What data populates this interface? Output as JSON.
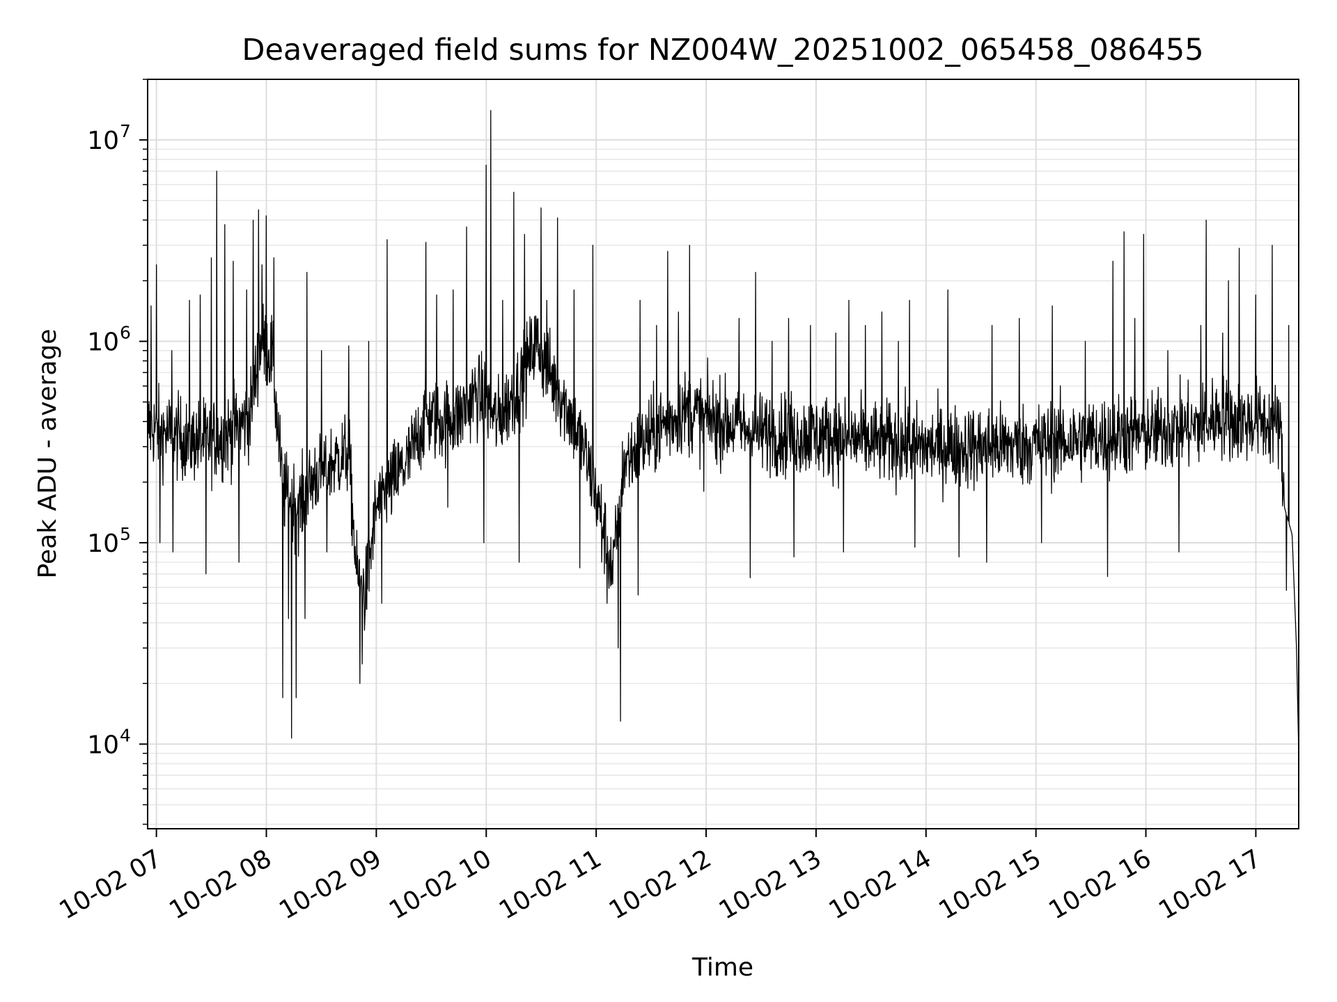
{
  "chart_data": {
    "type": "line",
    "title": "Deaveraged field sums for NZ004W_20251002_065458_086455",
    "xlabel": "Time",
    "ylabel": "Peak ADU - average",
    "yscale": "log",
    "x_unit": "hours",
    "xlim": [
      6.92,
      17.39
    ],
    "ylim": [
      3800,
      20000000
    ],
    "x_ticks": [
      {
        "value": 7,
        "label": "10-02 07"
      },
      {
        "value": 8,
        "label": "10-02 08"
      },
      {
        "value": 9,
        "label": "10-02 09"
      },
      {
        "value": 10,
        "label": "10-02 10"
      },
      {
        "value": 11,
        "label": "10-02 11"
      },
      {
        "value": 12,
        "label": "10-02 12"
      },
      {
        "value": 13,
        "label": "10-02 13"
      },
      {
        "value": 14,
        "label": "10-02 14"
      },
      {
        "value": 15,
        "label": "10-02 15"
      },
      {
        "value": 16,
        "label": "10-02 16"
      },
      {
        "value": 17,
        "label": "10-02 17"
      }
    ],
    "y_ticks": [
      {
        "value": 10000,
        "base": "10",
        "exp": "4"
      },
      {
        "value": 100000,
        "base": "10",
        "exp": "5"
      },
      {
        "value": 1000000,
        "base": "10",
        "exp": "6"
      },
      {
        "value": 10000000,
        "base": "10",
        "exp": "7"
      }
    ],
    "grid": true,
    "line_color": "#000000",
    "series": [
      {
        "name": "field sums",
        "baseline": [
          [
            6.92,
            380000
          ],
          [
            7.1,
            350000
          ],
          [
            7.3,
            320000
          ],
          [
            7.6,
            330000
          ],
          [
            7.85,
            420000
          ],
          [
            7.95,
            1000000
          ],
          [
            8.05,
            850000
          ],
          [
            8.15,
            180000
          ],
          [
            8.3,
            150000
          ],
          [
            8.45,
            220000
          ],
          [
            8.6,
            250000
          ],
          [
            8.75,
            280000
          ],
          [
            8.82,
            70000
          ],
          [
            8.9,
            55000
          ],
          [
            9.0,
            150000
          ],
          [
            9.15,
            200000
          ],
          [
            9.3,
            260000
          ],
          [
            9.45,
            420000
          ],
          [
            9.6,
            400000
          ],
          [
            9.75,
            420000
          ],
          [
            9.9,
            550000
          ],
          [
            10.0,
            500000
          ],
          [
            10.1,
            400000
          ],
          [
            10.3,
            600000
          ],
          [
            10.45,
            1000000
          ],
          [
            10.6,
            650000
          ],
          [
            10.75,
            450000
          ],
          [
            10.9,
            280000
          ],
          [
            11.05,
            130000
          ],
          [
            11.15,
            70000
          ],
          [
            11.25,
            250000
          ],
          [
            11.4,
            300000
          ],
          [
            11.6,
            380000
          ],
          [
            11.8,
            450000
          ],
          [
            12.0,
            420000
          ],
          [
            12.5,
            350000
          ],
          [
            13.0,
            340000
          ],
          [
            13.5,
            320000
          ],
          [
            14.0,
            300000
          ],
          [
            14.5,
            300000
          ],
          [
            15.0,
            310000
          ],
          [
            15.5,
            330000
          ],
          [
            16.0,
            350000
          ],
          [
            16.5,
            380000
          ],
          [
            16.68,
            430000
          ],
          [
            16.8,
            400000
          ],
          [
            17.0,
            400000
          ],
          [
            17.22,
            380000
          ],
          [
            17.26,
            150000
          ],
          [
            17.33,
            110000
          ],
          [
            17.37,
            30000
          ],
          [
            17.39,
            9000
          ]
        ],
        "spikes": [
          [
            6.95,
            1500000
          ],
          [
            7.0,
            2400000
          ],
          [
            7.14,
            900000
          ],
          [
            7.3,
            1600000
          ],
          [
            7.4,
            1700000
          ],
          [
            7.5,
            2600000
          ],
          [
            7.55,
            7000000
          ],
          [
            7.62,
            3800000
          ],
          [
            7.7,
            2500000
          ],
          [
            7.82,
            1800000
          ],
          [
            7.88,
            4000000
          ],
          [
            7.93,
            4500000
          ],
          [
            7.96,
            2400000
          ],
          [
            8.0,
            4200000
          ],
          [
            8.07,
            2600000
          ],
          [
            8.15,
            17000
          ],
          [
            8.23,
            10700
          ],
          [
            8.27,
            17000
          ],
          [
            8.35,
            42000
          ],
          [
            8.37,
            2200000
          ],
          [
            8.5,
            900000
          ],
          [
            8.75,
            950000
          ],
          [
            8.85,
            20000
          ],
          [
            8.93,
            1000000
          ],
          [
            9.1,
            3200000
          ],
          [
            9.45,
            3100000
          ],
          [
            9.55,
            1700000
          ],
          [
            9.7,
            1800000
          ],
          [
            9.82,
            3700000
          ],
          [
            10.0,
            7500000
          ],
          [
            10.04,
            14000000
          ],
          [
            10.15,
            1600000
          ],
          [
            10.25,
            5500000
          ],
          [
            10.35,
            3400000
          ],
          [
            10.5,
            4600000
          ],
          [
            10.55,
            1600000
          ],
          [
            10.65,
            4100000
          ],
          [
            10.8,
            1800000
          ],
          [
            10.97,
            3000000
          ],
          [
            11.05,
            80000
          ],
          [
            11.22,
            13000
          ],
          [
            11.4,
            1600000
          ],
          [
            11.55,
            1200000
          ],
          [
            11.65,
            2800000
          ],
          [
            11.75,
            1400000
          ],
          [
            11.85,
            3000000
          ],
          [
            12.3,
            1300000
          ],
          [
            12.45,
            2200000
          ],
          [
            12.6,
            1000000
          ],
          [
            12.75,
            1300000
          ],
          [
            12.95,
            1200000
          ],
          [
            13.18,
            1100000
          ],
          [
            13.3,
            1600000
          ],
          [
            13.45,
            1200000
          ],
          [
            13.6,
            1400000
          ],
          [
            13.75,
            1000000
          ],
          [
            13.85,
            1600000
          ],
          [
            14.2,
            1800000
          ],
          [
            14.3,
            1100000
          ],
          [
            14.6,
            1200000
          ],
          [
            14.85,
            1300000
          ],
          [
            15.15,
            1500000
          ],
          [
            15.45,
            1000000
          ],
          [
            15.7,
            2500000
          ],
          [
            15.8,
            3500000
          ],
          [
            15.9,
            1300000
          ],
          [
            15.98,
            3400000
          ],
          [
            16.2,
            900000
          ],
          [
            16.3,
            1100000
          ],
          [
            16.5,
            1200000
          ],
          [
            16.55,
            4000000
          ],
          [
            16.7,
            1100000
          ],
          [
            16.75,
            2000000
          ],
          [
            16.85,
            2900000
          ],
          [
            17.0,
            1700000
          ],
          [
            17.15,
            3000000
          ],
          [
            17.3,
            1200000
          ]
        ],
        "dips": [
          [
            7.03,
            100000
          ],
          [
            7.15,
            90000
          ],
          [
            7.45,
            70000
          ],
          [
            7.75,
            80000
          ],
          [
            8.2,
            42000
          ],
          [
            8.55,
            90000
          ],
          [
            8.87,
            25000
          ],
          [
            9.05,
            50000
          ],
          [
            9.65,
            150000
          ],
          [
            9.98,
            100000
          ],
          [
            10.3,
            80000
          ],
          [
            10.85,
            75000
          ],
          [
            11.1,
            50000
          ],
          [
            11.2,
            30000
          ],
          [
            11.38,
            55000
          ],
          [
            11.98,
            180000
          ],
          [
            12.4,
            67000
          ],
          [
            12.8,
            85000
          ],
          [
            13.25,
            90000
          ],
          [
            13.9,
            95000
          ],
          [
            14.3,
            85000
          ],
          [
            14.55,
            80000
          ],
          [
            15.05,
            100000
          ],
          [
            15.65,
            68000
          ],
          [
            16.3,
            90000
          ],
          [
            17.28,
            58000
          ]
        ],
        "noise_amplitude_decades": 0.25,
        "sample_count": 3000
      }
    ]
  }
}
